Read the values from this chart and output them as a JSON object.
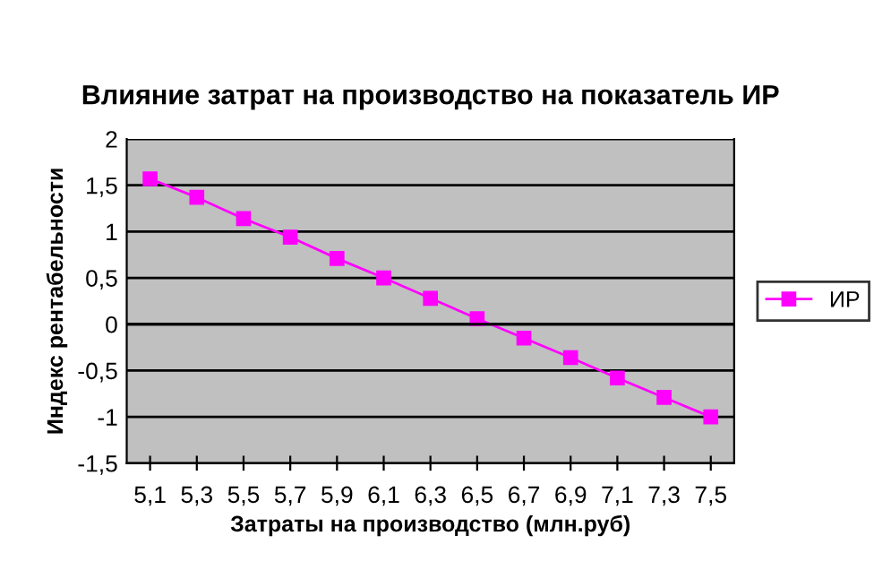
{
  "chart_data": {
    "type": "line",
    "title": "Влияние затрат на производство на показатель ИР",
    "xlabel": "Затраты на производство (млн.руб)",
    "ylabel": "Индекс рентабельности",
    "categories": [
      "5,1",
      "5,3",
      "5,5",
      "5,7",
      "5,9",
      "6,1",
      "6,3",
      "6,5",
      "6,7",
      "6,9",
      "7,1",
      "7,3",
      "7,5"
    ],
    "series": [
      {
        "name": "ИР",
        "color": "#ff00ff",
        "values": [
          1.57,
          1.37,
          1.14,
          0.94,
          0.71,
          0.5,
          0.28,
          0.06,
          -0.15,
          -0.36,
          -0.58,
          -0.79,
          -1.0
        ]
      }
    ],
    "ylim": [
      -1.5,
      2
    ],
    "yticks": [
      {
        "value": -1.5,
        "label": "-1,5"
      },
      -1,
      {
        "value": -0.5,
        "label": "-0,5"
      },
      0,
      {
        "value": 0.5,
        "label": "0,5"
      },
      1,
      {
        "value": 1.5,
        "label": "1,5"
      },
      2
    ],
    "grid": "y",
    "legend": "right",
    "marker": "square",
    "line_style": "solid"
  }
}
